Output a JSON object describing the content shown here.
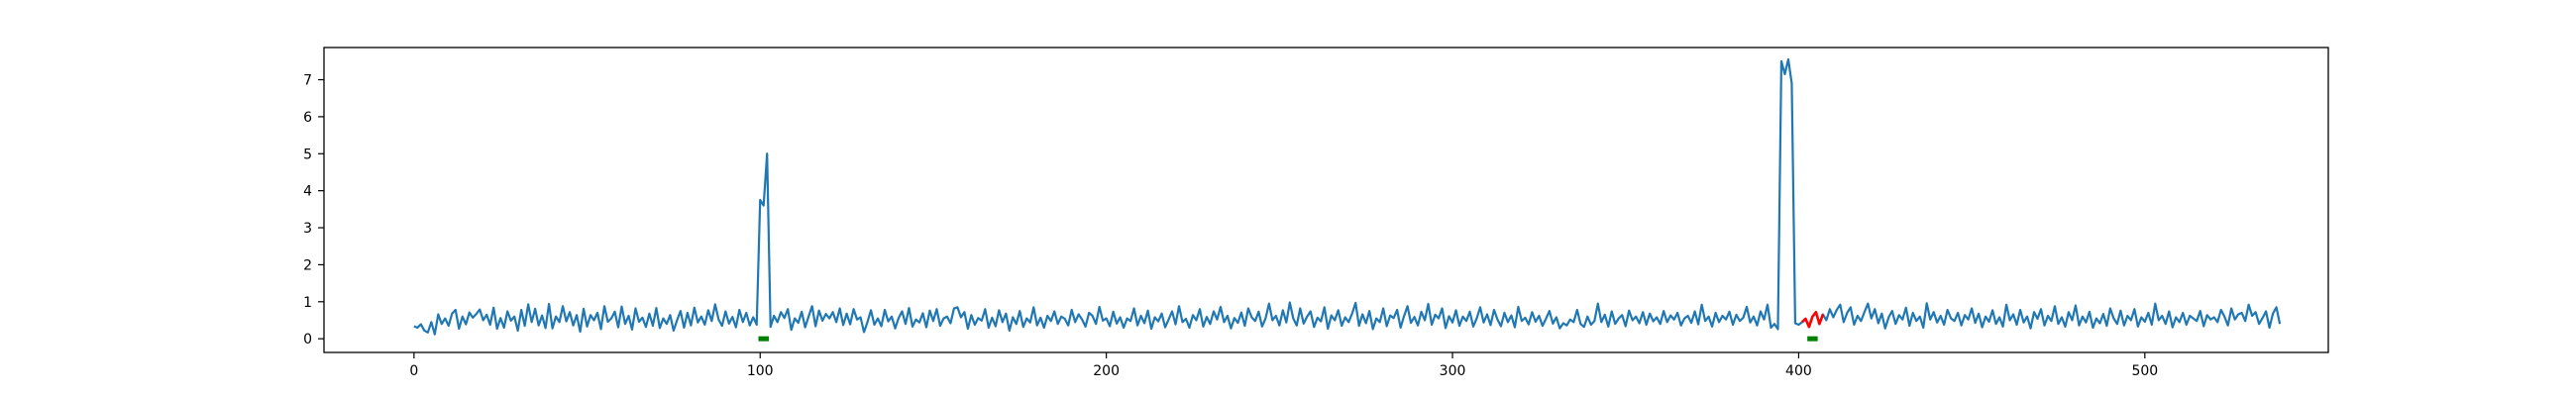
{
  "chart_data": {
    "type": "line",
    "title": "",
    "xlabel": "",
    "ylabel": "",
    "xlim": [
      -26,
      553
    ],
    "ylim": [
      -0.37,
      7.87
    ],
    "xticks": [
      0,
      100,
      200,
      300,
      400,
      500
    ],
    "yticks": [
      0,
      1,
      2,
      3,
      4,
      5,
      6,
      7
    ],
    "grid": false,
    "legend": "none",
    "colors": {
      "series": "#1f77b4",
      "highlight": "#ff0000",
      "marker": "#008000",
      "axes": "#000000"
    },
    "series": [
      {
        "x_start": 0,
        "x_step": 1,
        "values": [
          0.34,
          0.3,
          0.39,
          0.22,
          0.17,
          0.45,
          0.12,
          0.66,
          0.4,
          0.55,
          0.35,
          0.68,
          0.78,
          0.27,
          0.6,
          0.39,
          0.71,
          0.57,
          0.67,
          0.79,
          0.5,
          0.65,
          0.38,
          0.84,
          0.27,
          0.56,
          0.3,
          0.74,
          0.49,
          0.6,
          0.22,
          0.78,
          0.35,
          0.93,
          0.45,
          0.81,
          0.36,
          0.63,
          0.29,
          0.94,
          0.28,
          0.6,
          0.45,
          0.88,
          0.47,
          0.72,
          0.36,
          0.64,
          0.19,
          0.81,
          0.33,
          0.64,
          0.5,
          0.7,
          0.26,
          0.88,
          0.46,
          0.55,
          0.73,
          0.31,
          0.87,
          0.4,
          0.62,
          0.25,
          0.82,
          0.46,
          0.57,
          0.32,
          0.68,
          0.35,
          0.83,
          0.29,
          0.55,
          0.4,
          0.64,
          0.22,
          0.5,
          0.75,
          0.3,
          0.7,
          0.36,
          0.84,
          0.44,
          0.6,
          0.38,
          0.77,
          0.48,
          0.93,
          0.52,
          0.35,
          0.74,
          0.41,
          0.59,
          0.31,
          0.78,
          0.45,
          0.7,
          0.36,
          0.58,
          0.38,
          3.75,
          3.6,
          5.0,
          0.32,
          0.62,
          0.45,
          0.72,
          0.56,
          0.8,
          0.24,
          0.55,
          0.43,
          0.73,
          0.31,
          0.6,
          0.88,
          0.34,
          0.76,
          0.49,
          0.67,
          0.55,
          0.72,
          0.45,
          0.82,
          0.37,
          0.68,
          0.39,
          0.8,
          0.52,
          0.58,
          0.18,
          0.45,
          0.77,
          0.38,
          0.55,
          0.34,
          0.78,
          0.47,
          0.6,
          0.28,
          0.56,
          0.74,
          0.4,
          0.83,
          0.33,
          0.52,
          0.44,
          0.69,
          0.31,
          0.76,
          0.48,
          0.8,
          0.35,
          0.55,
          0.6,
          0.42,
          0.82,
          0.85,
          0.58,
          0.72,
          0.27,
          0.64,
          0.38,
          0.56,
          0.49,
          0.8,
          0.3,
          0.57,
          0.34,
          0.77,
          0.45,
          0.68,
          0.22,
          0.58,
          0.4,
          0.75,
          0.32,
          0.55,
          0.44,
          0.85,
          0.36,
          0.57,
          0.3,
          0.62,
          0.48,
          0.74,
          0.4,
          0.6,
          0.54,
          0.36,
          0.78,
          0.45,
          0.66,
          0.52,
          0.33,
          0.7,
          0.62,
          0.4,
          0.86,
          0.49,
          0.55,
          0.34,
          0.73,
          0.41,
          0.58,
          0.3,
          0.55,
          0.48,
          0.82,
          0.36,
          0.62,
          0.42,
          0.76,
          0.27,
          0.58,
          0.47,
          0.68,
          0.31,
          0.52,
          0.74,
          0.39,
          0.88,
          0.45,
          0.54,
          0.3,
          0.64,
          0.5,
          0.8,
          0.33,
          0.59,
          0.4,
          0.74,
          0.52,
          0.86,
          0.45,
          0.62,
          0.28,
          0.56,
          0.43,
          0.71,
          0.35,
          0.82,
          0.58,
          0.48,
          0.73,
          0.33,
          0.55,
          0.95,
          0.5,
          0.62,
          0.36,
          0.77,
          0.44,
          0.98,
          0.55,
          0.36,
          0.82,
          0.41,
          0.6,
          0.74,
          0.32,
          0.57,
          0.47,
          0.85,
          0.27,
          0.63,
          0.5,
          0.77,
          0.35,
          0.58,
          0.45,
          0.68,
          0.97,
          0.35,
          0.66,
          0.42,
          0.75,
          0.26,
          0.55,
          0.45,
          0.82,
          0.34,
          0.63,
          0.56,
          0.78,
          0.3,
          0.61,
          0.88,
          0.43,
          0.59,
          0.36,
          0.73,
          0.5,
          0.94,
          0.38,
          0.65,
          0.55,
          0.82,
          0.29,
          0.61,
          0.44,
          0.77,
          0.35,
          0.6,
          0.48,
          0.73,
          0.33,
          0.55,
          0.85,
          0.44,
          0.66,
          0.37,
          0.78,
          0.52,
          0.34,
          0.7,
          0.45,
          0.63,
          0.31,
          0.86,
          0.48,
          0.57,
          0.39,
          0.72,
          0.46,
          0.62,
          0.35,
          0.54,
          0.75,
          0.41,
          0.58,
          0.28,
          0.42,
          0.36,
          0.52,
          0.45,
          0.78,
          0.4,
          0.32,
          0.6,
          0.38,
          0.48,
          0.95,
          0.45,
          0.65,
          0.33,
          0.74,
          0.4,
          0.55,
          0.64,
          0.34,
          0.76,
          0.5,
          0.6,
          0.42,
          0.72,
          0.38,
          0.68,
          0.47,
          0.58,
          0.4,
          0.75,
          0.45,
          0.63,
          0.52,
          0.7,
          0.36,
          0.55,
          0.62,
          0.43,
          0.74,
          0.39,
          0.92,
          0.48,
          0.6,
          0.33,
          0.7,
          0.45,
          0.62,
          0.52,
          0.73,
          0.38,
          0.65,
          0.48,
          0.57,
          0.86,
          0.44,
          0.6,
          0.36,
          0.74,
          0.52,
          0.92,
          0.3,
          0.4,
          0.26,
          7.5,
          7.15,
          7.55,
          6.9,
          0.42,
          0.38,
          0.45,
          0.54,
          0.32,
          0.6,
          0.72,
          0.4,
          0.66,
          0.5,
          0.8,
          0.58,
          0.78,
          0.92,
          0.45,
          0.7,
          0.85,
          0.38,
          0.62,
          0.48,
          0.72,
          0.95,
          0.55,
          0.8,
          0.42,
          0.68,
          0.28,
          0.58,
          0.75,
          0.4,
          0.64,
          0.52,
          0.84,
          0.35,
          0.7,
          0.48,
          0.6,
          0.3,
          0.96,
          0.52,
          0.72,
          0.44,
          0.62,
          0.38,
          0.78,
          0.55,
          0.48,
          0.7,
          0.36,
          0.64,
          0.52,
          0.82,
          0.43,
          0.68,
          0.31,
          0.6,
          0.46,
          0.77,
          0.4,
          0.58,
          0.33,
          0.92,
          0.5,
          0.66,
          0.38,
          0.78,
          0.44,
          0.6,
          0.28,
          0.72,
          0.54,
          0.8,
          0.36,
          0.62,
          0.48,
          0.88,
          0.4,
          0.58,
          0.33,
          0.72,
          0.5,
          0.9,
          0.36,
          0.6,
          0.44,
          0.73,
          0.3,
          0.55,
          0.42,
          0.67,
          0.35,
          0.82,
          0.55,
          0.4,
          0.76,
          0.36,
          0.62,
          0.5,
          0.8,
          0.33,
          0.58,
          0.46,
          0.7,
          0.38,
          0.95,
          0.5,
          0.62,
          0.4,
          0.74,
          0.31,
          0.58,
          0.45,
          0.7,
          0.38,
          0.62,
          0.55,
          0.48,
          0.75,
          0.34,
          0.64,
          0.52,
          0.58,
          0.45,
          0.78,
          0.6,
          0.36,
          0.82,
          0.52,
          0.66,
          0.7,
          0.48,
          0.92,
          0.62,
          0.72,
          0.4,
          0.56,
          0.74,
          0.3,
          0.68,
          0.85,
          0.4
        ]
      }
    ],
    "highlight": {
      "x_start": 401,
      "x_end": 407
    },
    "markers": [
      {
        "x_start": 99.5,
        "x_end": 102.5,
        "y": 0
      },
      {
        "x_start": 402.5,
        "x_end": 405.5,
        "y": 0
      }
    ]
  }
}
